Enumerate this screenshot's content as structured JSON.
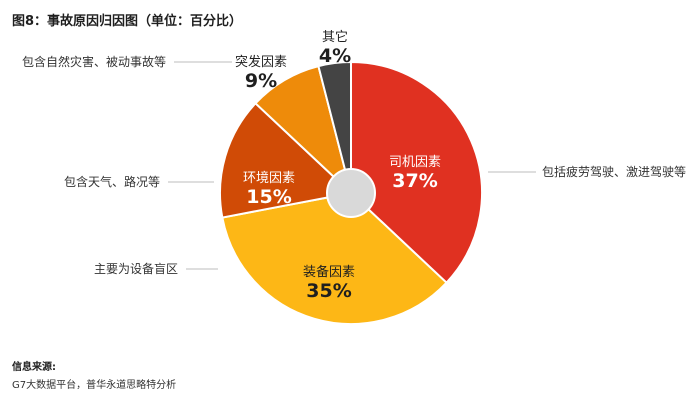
{
  "title": "图8：事故原因归因图（单位：百分比）",
  "source": {
    "label": "信息来源:",
    "text": "G7大数据平台，普华永道思略特分析"
  },
  "chart_data": {
    "type": "pie",
    "title": "图8：事故原因归因图（单位：百分比）",
    "donut": true,
    "slices": [
      {
        "label": "司机因素",
        "value": 37,
        "pct_text": "37%",
        "color": "#e03121",
        "annotation": "包括疲劳驾驶、激进驾驶等"
      },
      {
        "label": "装备因素",
        "value": 35,
        "pct_text": "35%",
        "color": "#fdb716",
        "annotation": "主要为设备盲区"
      },
      {
        "label": "环境因素",
        "value": 15,
        "pct_text": "15%",
        "color": "#d04b06",
        "annotation": "包含天气、路况等"
      },
      {
        "label": "突发因素",
        "value": 9,
        "pct_text": "9%",
        "color": "#ee8b0a",
        "annotation": "包含自然灾害、被动事故等"
      },
      {
        "label": "其它",
        "value": 4,
        "pct_text": "4%",
        "color": "#444444",
        "annotation": ""
      }
    ]
  }
}
